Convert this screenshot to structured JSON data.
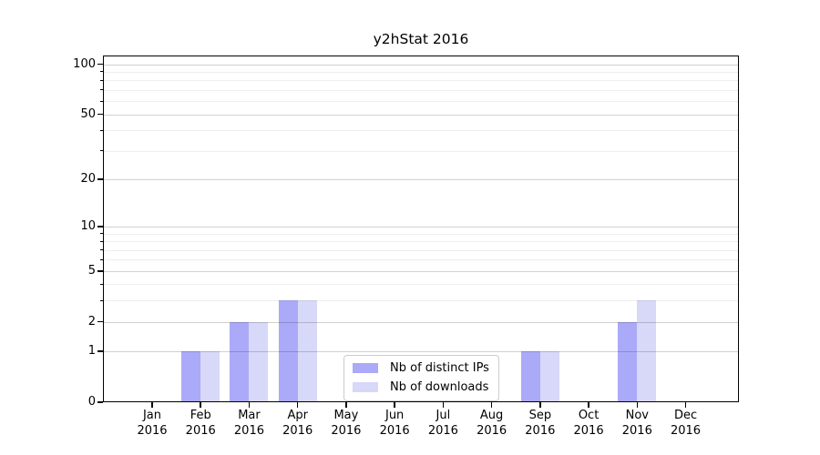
{
  "title": "y2hStat 2016",
  "chart_data": {
    "type": "bar",
    "title": "y2hStat 2016",
    "categories": [
      "Jan",
      "Feb",
      "Mar",
      "Apr",
      "May",
      "Jun",
      "Jul",
      "Aug",
      "Sep",
      "Oct",
      "Nov",
      "Dec"
    ],
    "x_year": "2016",
    "series": [
      {
        "name": "Nb of distinct IPs",
        "color": "#aaaaf8",
        "values": [
          0,
          1,
          2,
          3,
          0,
          0,
          0,
          0,
          1,
          0,
          2,
          0
        ]
      },
      {
        "name": "Nb of downloads",
        "color": "#d8d8f8",
        "values": [
          0,
          1,
          2,
          3,
          0,
          0,
          0,
          0,
          1,
          0,
          3,
          0
        ]
      }
    ],
    "yscale": "log1p",
    "ylim": [
      0,
      100
    ],
    "y_major_ticks": [
      0,
      1,
      2,
      5,
      10,
      20,
      50,
      100
    ],
    "y_minor_ticks": [
      3,
      4,
      6,
      7,
      8,
      9,
      30,
      40,
      60,
      70,
      80,
      90
    ],
    "grid": "both",
    "legend_position": "lower center"
  }
}
